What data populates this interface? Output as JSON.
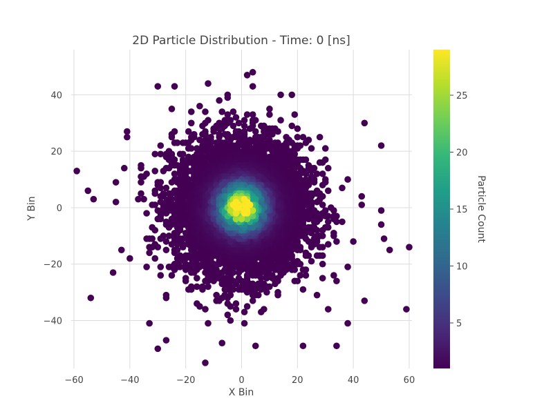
{
  "chart_data": {
    "type": "scatter",
    "title": "2D Particle Distribution - Time: 0 [ns]",
    "xlabel": "X Bin",
    "ylabel": "Y Bin",
    "xlim": [
      -61,
      61
    ],
    "ylim": [
      -57,
      56
    ],
    "x_ticks": [
      -60,
      -40,
      -20,
      0,
      20,
      40,
      60
    ],
    "y_ticks": [
      -40,
      -20,
      0,
      20,
      40
    ],
    "grid": true,
    "colorscale": "Viridis",
    "colorscale_stops": [
      "#440154",
      "#482878",
      "#3e4989",
      "#31688e",
      "#26828e",
      "#1f9e89",
      "#35b779",
      "#6ece58",
      "#b5de2b",
      "#fde725"
    ],
    "colorbar": {
      "title": "Particle Count",
      "range": [
        1,
        29
      ],
      "ticks": [
        5,
        10,
        15,
        20,
        25
      ]
    },
    "distribution": {
      "center": [
        0,
        0
      ],
      "sigma_approx": 12,
      "peak_count": 28
    },
    "points": [
      {
        "x": -59,
        "y": 13,
        "count": 1
      },
      {
        "x": -55,
        "y": 6,
        "count": 1
      },
      {
        "x": -53,
        "y": 3,
        "count": 1
      },
      {
        "x": -54,
        "y": -32,
        "count": 1
      },
      {
        "x": -46,
        "y": -23,
        "count": 1
      },
      {
        "x": -45,
        "y": 9,
        "count": 1
      },
      {
        "x": -43,
        "y": -15,
        "count": 1
      },
      {
        "x": -41,
        "y": 27,
        "count": 1
      },
      {
        "x": -33,
        "y": -41,
        "count": 1
      },
      {
        "x": -30,
        "y": 43,
        "count": 1
      },
      {
        "x": -30,
        "y": -50,
        "count": 1
      },
      {
        "x": -27,
        "y": -47,
        "count": 1
      },
      {
        "x": -25,
        "y": 35,
        "count": 1
      },
      {
        "x": -13,
        "y": -55,
        "count": 1
      },
      {
        "x": -12,
        "y": 44,
        "count": 1
      },
      {
        "x": -8,
        "y": 38,
        "count": 1
      },
      {
        "x": 2,
        "y": 47,
        "count": 1
      },
      {
        "x": 4,
        "y": 48,
        "count": 1
      },
      {
        "x": 5,
        "y": -49,
        "count": 1
      },
      {
        "x": 18,
        "y": 40,
        "count": 1
      },
      {
        "x": 22,
        "y": -49,
        "count": 1
      },
      {
        "x": 34,
        "y": -49,
        "count": 1
      },
      {
        "x": 38,
        "y": -41,
        "count": 1
      },
      {
        "x": 44,
        "y": 30,
        "count": 1
      },
      {
        "x": 44,
        "y": -33,
        "count": 1
      },
      {
        "x": 50,
        "y": 22,
        "count": 1
      },
      {
        "x": 50,
        "y": -1,
        "count": 1
      },
      {
        "x": 50,
        "y": -6,
        "count": 1
      },
      {
        "x": 53,
        "y": -15,
        "count": 1
      },
      {
        "x": 59,
        "y": -36,
        "count": 1
      },
      {
        "x": 60,
        "y": -14,
        "count": 1
      }
    ]
  }
}
